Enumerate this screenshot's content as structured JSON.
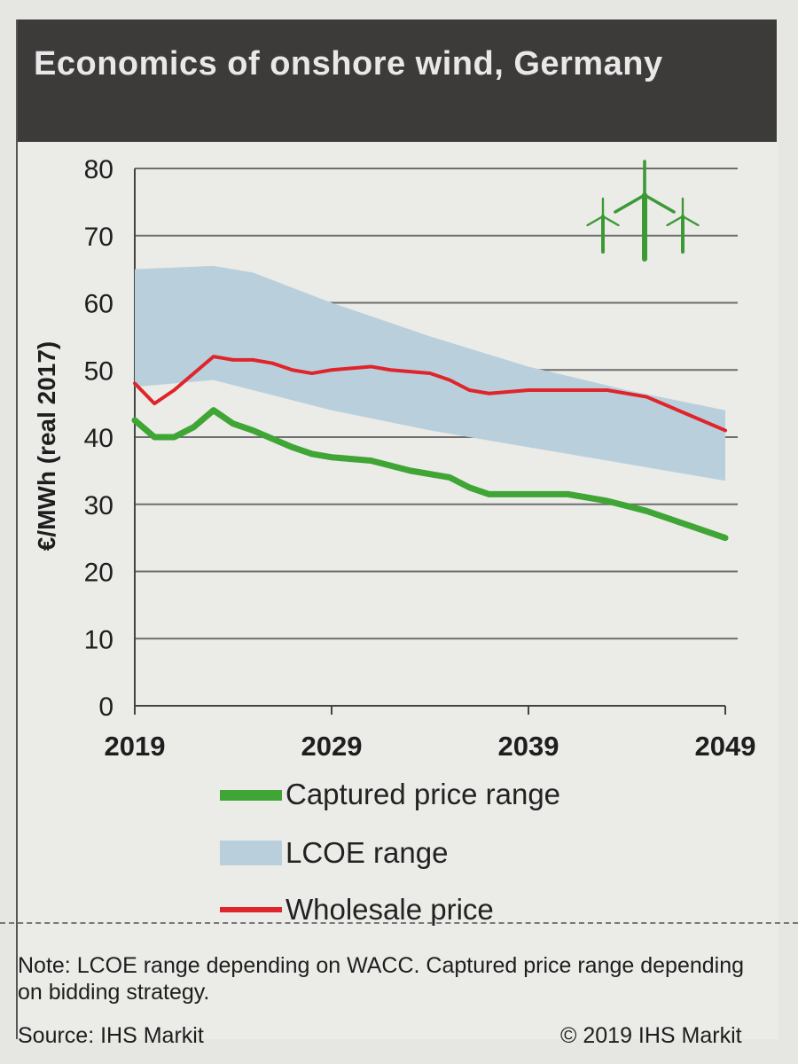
{
  "title": "Economics of onshore wind, Germany",
  "legend": {
    "captured": "Captured price range",
    "lcoe": "LCOE range",
    "wholesale": "Wholesale price"
  },
  "note": "Note: LCOE range depending on WACC. Captured price range depending on bidding strategy.",
  "source": "Source: IHS Markit",
  "copyright": "© 2019 IHS Markit",
  "colors": {
    "header": "#3d3a3a",
    "lcoe_fill": "#b9d0dc",
    "wholesale": "#e0242b",
    "captured": "#3fa535",
    "turbine": "#3c9a35"
  },
  "icon": "wind-turbines-icon",
  "chart_data": {
    "type": "line",
    "ylabel": "€/MWh (real 2017)",
    "xlabel": "",
    "ylim": [
      0,
      80
    ],
    "yticks": [
      0,
      10,
      20,
      30,
      40,
      50,
      60,
      70,
      80
    ],
    "xlim": [
      2019,
      2049
    ],
    "xticks": [
      2019,
      2029,
      2039,
      2049
    ],
    "grid": "horizontal",
    "legend_position": "bottom",
    "series": [
      {
        "name": "LCOE range",
        "kind": "band",
        "x": [
          2019,
          2023,
          2025,
          2029,
          2034,
          2039,
          2044,
          2049
        ],
        "upper": [
          65,
          65.5,
          64.5,
          60,
          55,
          50.5,
          47,
          44
        ],
        "lower": [
          47.5,
          48.5,
          47,
          44,
          41,
          38.5,
          36,
          33.5
        ]
      },
      {
        "name": "Wholesale price",
        "x": [
          2019,
          2020,
          2021,
          2023,
          2024,
          2025,
          2026,
          2027,
          2028,
          2029,
          2031,
          2032,
          2034,
          2035,
          2036,
          2037,
          2039,
          2041,
          2043,
          2045,
          2047,
          2049
        ],
        "values": [
          48,
          45,
          47,
          52,
          51.5,
          51.5,
          51,
          50,
          49.5,
          50,
          50.5,
          50,
          49.5,
          48.5,
          47,
          46.5,
          47,
          47,
          47,
          46,
          43.5,
          41
        ]
      },
      {
        "name": "Captured price range",
        "x": [
          2019,
          2020,
          2021,
          2022,
          2023,
          2024,
          2025,
          2027,
          2028,
          2029,
          2031,
          2033,
          2035,
          2036,
          2037,
          2039,
          2041,
          2043,
          2045,
          2047,
          2049
        ],
        "values": [
          42.5,
          40,
          40,
          41.5,
          44,
          42,
          41,
          38.5,
          37.5,
          37,
          36.5,
          35,
          34,
          32.5,
          31.5,
          31.5,
          31.5,
          30.5,
          29,
          27,
          25
        ]
      }
    ]
  }
}
